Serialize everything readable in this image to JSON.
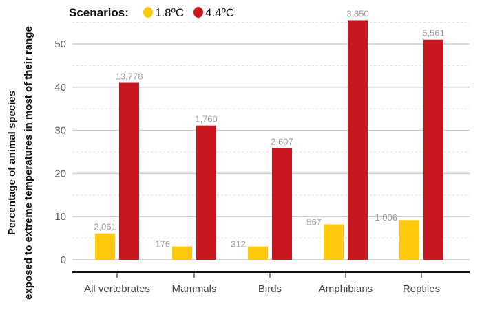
{
  "chart_data": {
    "type": "bar",
    "title": "",
    "legend_title": "Scenarios:",
    "legend_placement": "top-left",
    "categories": [
      "All vertebrates",
      "Mammals",
      "Birds",
      "Amphibians",
      "Reptiles"
    ],
    "series": [
      {
        "name": "1.8ºC",
        "color": "#FFC90E",
        "values": [
          6.1,
          3.1,
          3.1,
          8.2,
          9.2
        ],
        "labels": [
          "2,061",
          "176",
          "312",
          "567",
          "1,006"
        ]
      },
      {
        "name": "4.4ºC",
        "color": "#C8171E",
        "values": [
          41.0,
          31.1,
          25.9,
          55.5,
          51.0
        ],
        "labels": [
          "13,778",
          "1,760",
          "2,607",
          "3,850",
          "5,561"
        ]
      }
    ],
    "xlabel": "",
    "ylabel": [
      "Percentage of animal species",
      "exposed to extreme temperatures in most of their range"
    ],
    "ylim": [
      0,
      57
    ],
    "yticks": [
      0,
      10,
      20,
      30,
      40,
      50
    ],
    "grid": true
  }
}
